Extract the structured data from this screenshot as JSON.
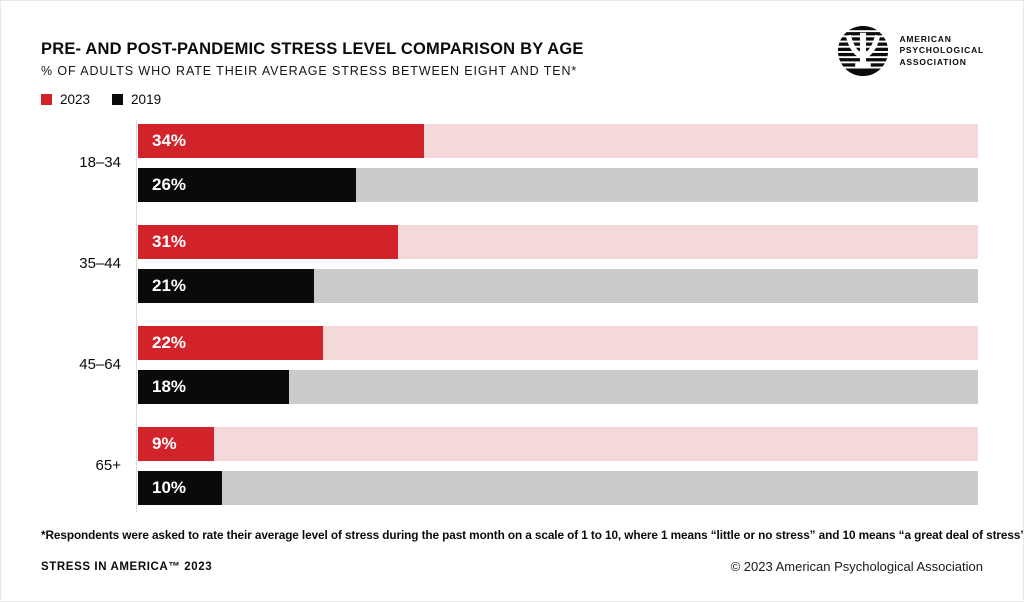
{
  "header": {
    "title": "PRE- AND POST-PANDEMIC STRESS LEVEL COMPARISON BY AGE",
    "subtitle": "% OF ADULTS WHO RATE THEIR AVERAGE STRESS BETWEEN EIGHT AND TEN*"
  },
  "logo": {
    "line1": "AMERICAN",
    "line2": "PSYCHOLOGICAL",
    "line3": "ASSOCIATION"
  },
  "chart_data": {
    "type": "bar",
    "orientation": "horizontal",
    "title": "PRE- AND POST-PANDEMIC STRESS LEVEL COMPARISON BY AGE",
    "subtitle": "% OF ADULTS WHO RATE THEIR AVERAGE STRESS BETWEEN EIGHT AND TEN*",
    "categories": [
      "18–34",
      "35–44",
      "45–64",
      "65+"
    ],
    "series": [
      {
        "name": "2023",
        "color": "#d2232a",
        "track_color": "#f5d8da",
        "values": [
          34,
          31,
          22,
          9
        ]
      },
      {
        "name": "2019",
        "color": "#0a0a0a",
        "track_color": "#cbcbcb",
        "values": [
          26,
          21,
          18,
          10
        ]
      }
    ],
    "value_suffix": "%",
    "xlim": [
      0,
      100
    ],
    "grid": false,
    "legend_position": "top-left",
    "axis_color": "#dbdbdb"
  },
  "footnote": "*Respondents were asked to rate their average level of stress during the past month on a scale of 1 to 10, where 1 means “little or no stress” and 10 means “a great deal of stress”",
  "footer": {
    "left": "STRESS IN AMERICA™ 2023",
    "right": "© 2023 American Psychological Association"
  }
}
